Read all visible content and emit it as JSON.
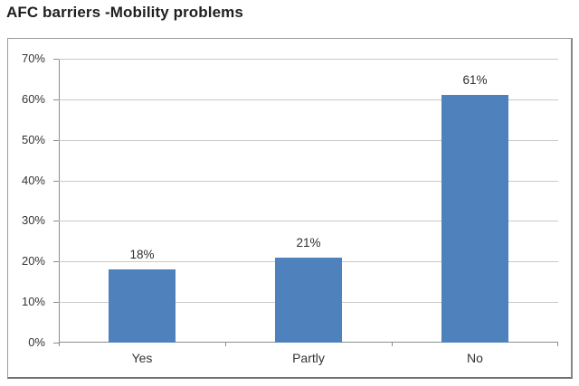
{
  "title": "AFC barriers -Mobility problems",
  "chart_data": {
    "type": "bar",
    "title": "AFC barriers -Mobility problems",
    "categories": [
      "Yes",
      "Partly",
      "No"
    ],
    "values": [
      18,
      21,
      61
    ],
    "value_labels": [
      "18%",
      "21%",
      "61%"
    ],
    "xlabel": "",
    "ylabel": "",
    "ylim": [
      0,
      70
    ],
    "y_tick_step": 10,
    "y_tick_labels": [
      "0%",
      "10%",
      "20%",
      "30%",
      "40%",
      "50%",
      "60%",
      "70%"
    ],
    "grid": true,
    "legend": false,
    "colors": {
      "bar_fill": "#4f81bd",
      "gridline": "#c9c9c9",
      "axis_line": "#8c8c8c",
      "label_text": "#333333",
      "value_label_text": "#2e2e2e",
      "title_text": "#1f1f1f",
      "frame_border": "#8a8a8a",
      "background": "#ffffff"
    }
  }
}
